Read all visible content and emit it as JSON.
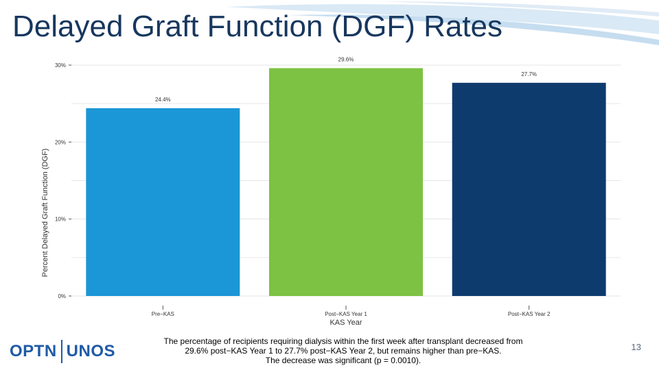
{
  "slide": {
    "title": "Delayed Graft Function (DGF) Rates",
    "caption_lines": [
      "The percentage of recipients requiring dialysis within the first week after transplant decreased from",
      "29.6% post−KAS Year 1 to 27.7% post−KAS Year 2, but remains higher than pre−KAS.",
      "The decrease was significant (p = 0.0010)."
    ],
    "page_number": "13",
    "logo": {
      "left": "OPTN",
      "right": "UNOS"
    }
  },
  "chart_data": {
    "type": "bar",
    "title": "",
    "xlabel": "KAS Year",
    "ylabel": "Percent Delayed Graft Function (DGF)",
    "categories": [
      "Pre−KAS",
      "Post−KAS Year 1",
      "Post−KAS Year 2"
    ],
    "values": [
      24.4,
      29.6,
      27.7
    ],
    "value_labels": [
      "24.4%",
      "29.6%",
      "27.7%"
    ],
    "bar_colors": [
      "#1b96d6",
      "#7dc243",
      "#0e3b6e"
    ],
    "y_ticks": [
      0,
      10,
      20,
      30
    ],
    "y_tick_labels": [
      "0%",
      "10%",
      "20%",
      "30%"
    ],
    "ylim": [
      0,
      30
    ],
    "grid": true
  }
}
